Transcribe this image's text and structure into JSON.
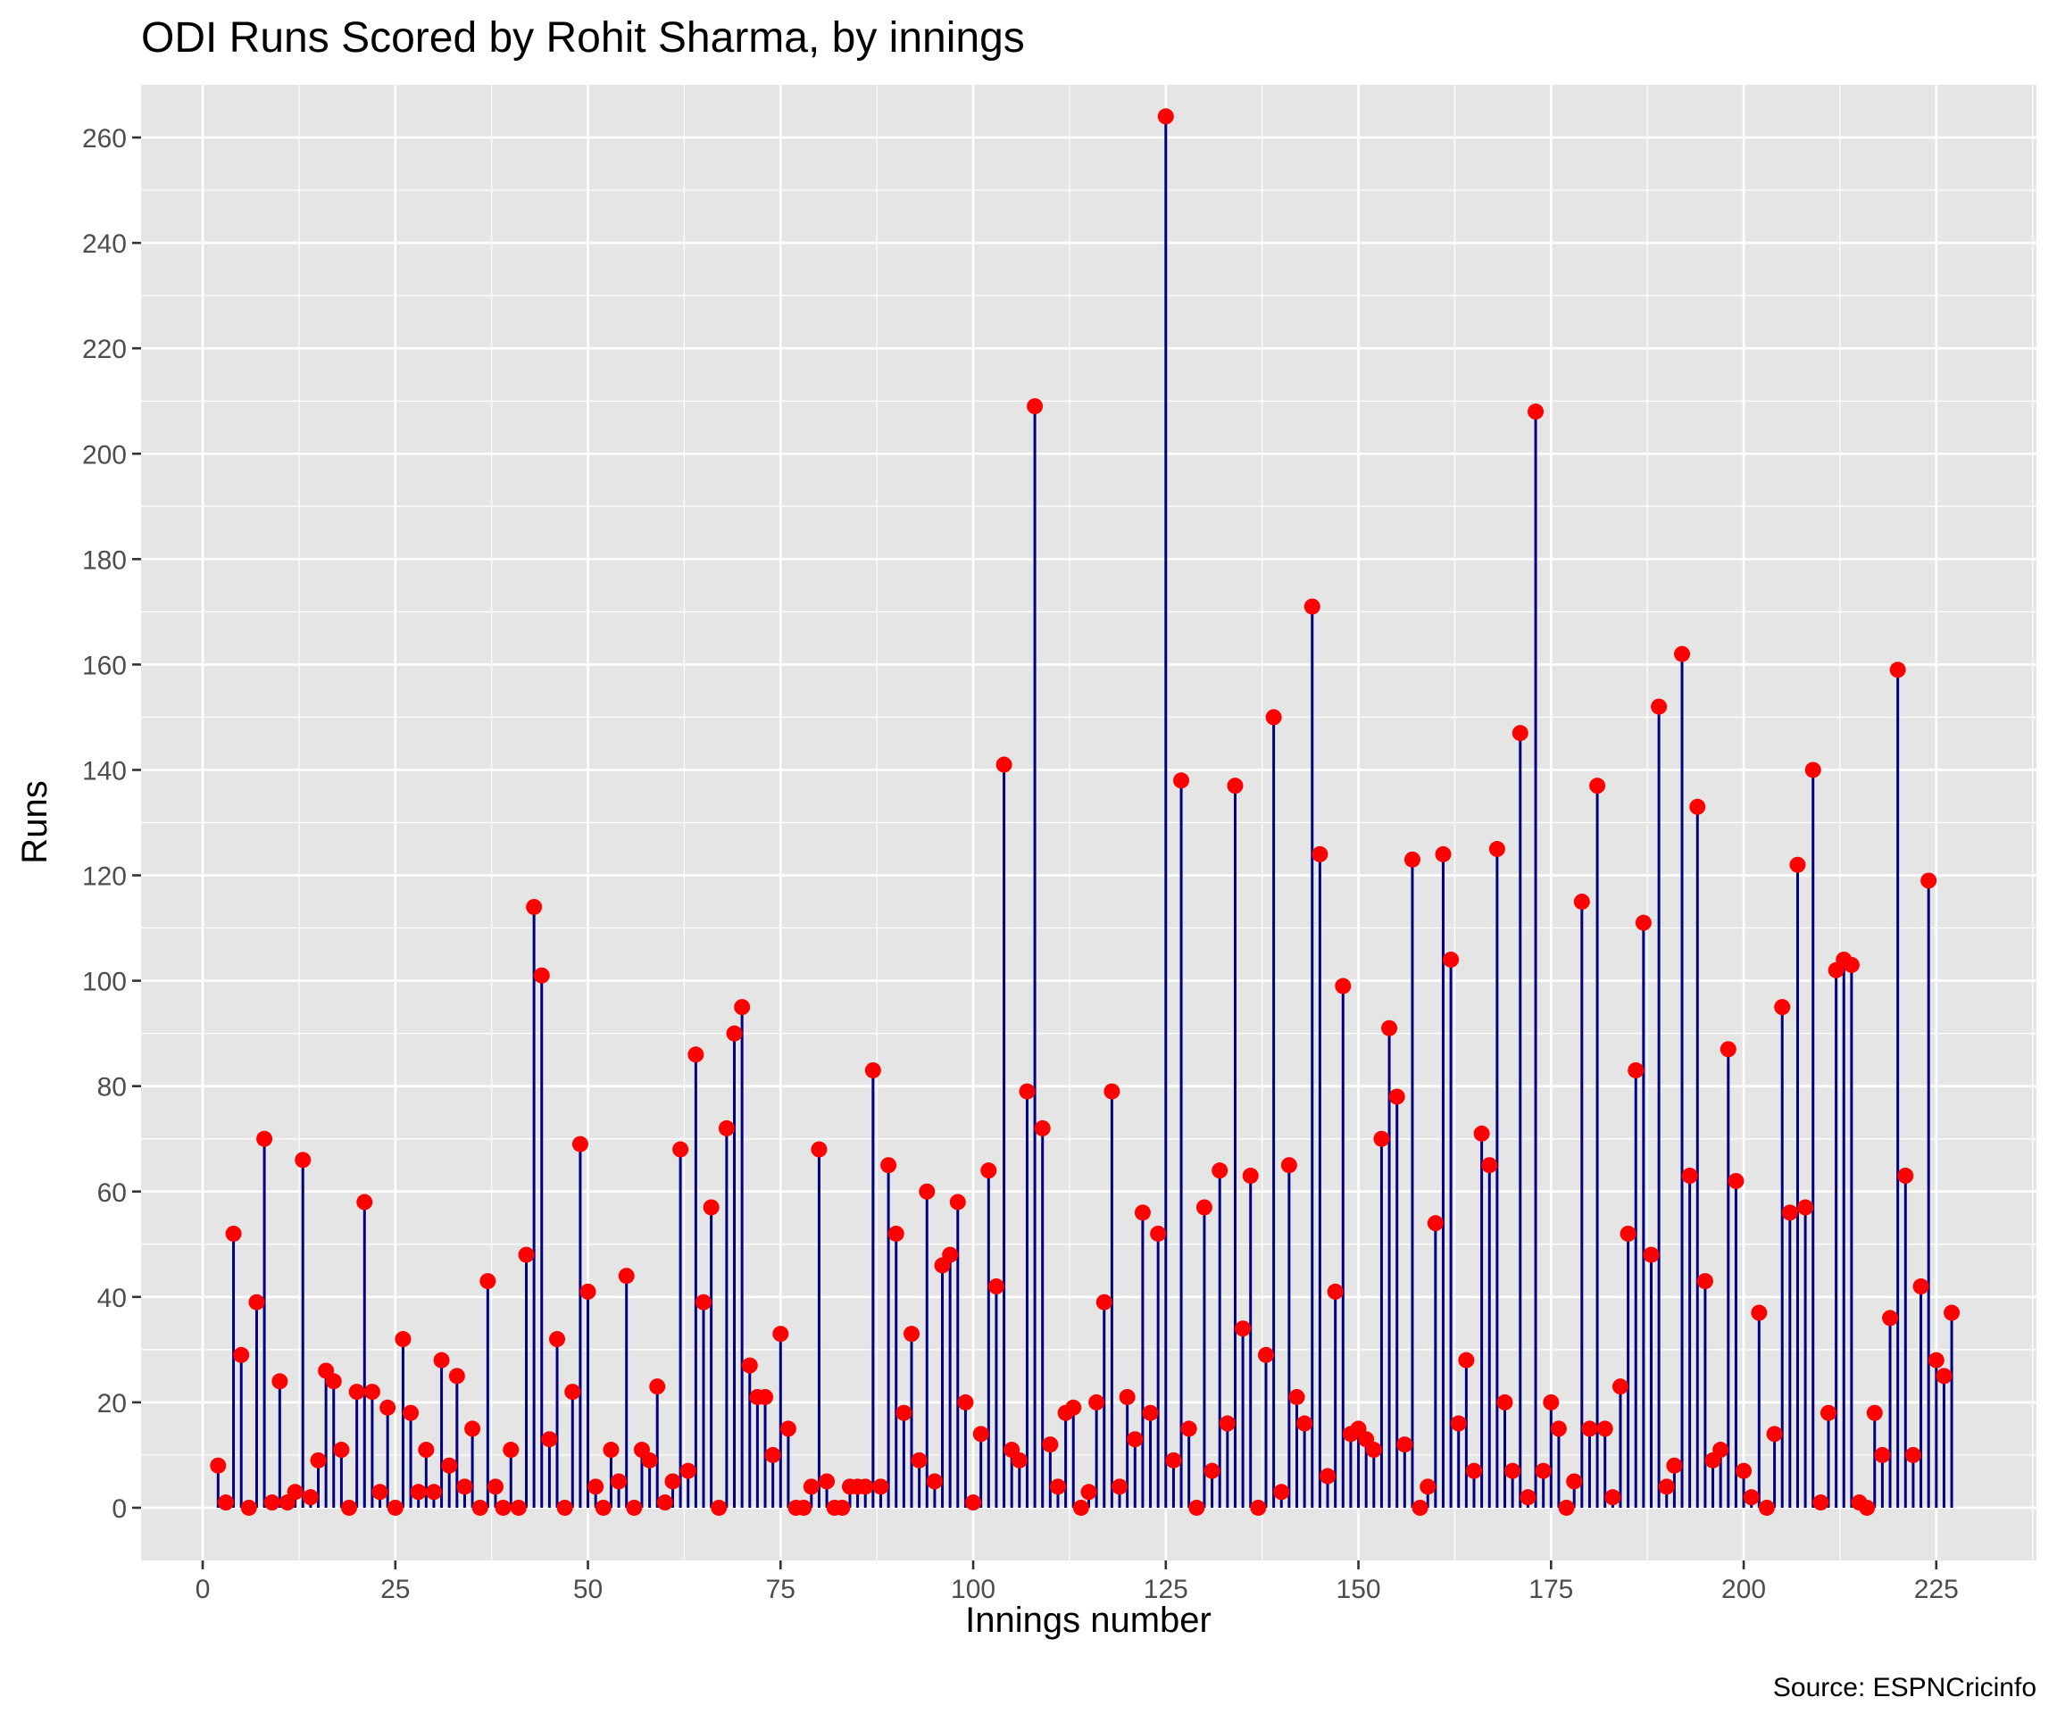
{
  "chart_data": {
    "type": "lollipop",
    "title": "ODI Runs Scored by Rohit Sharma, by innings",
    "xlabel": "Innings number",
    "ylabel": "Runs",
    "caption": "Source: ESPNCricinfo",
    "xlim": [
      -8,
      238
    ],
    "ylim": [
      -10,
      270
    ],
    "xticks": [
      0,
      25,
      50,
      75,
      100,
      125,
      150,
      175,
      200,
      225
    ],
    "yticks": [
      0,
      20,
      40,
      60,
      80,
      100,
      120,
      140,
      160,
      180,
      200,
      220,
      240,
      260
    ],
    "grid": true,
    "colors": {
      "panel": "#e5e5e5",
      "grid": "#ffffff",
      "stem": "#000080",
      "point": "#ff0000"
    },
    "x_start": 2,
    "values": [
      8,
      1,
      52,
      29,
      0,
      39,
      70,
      1,
      24,
      1,
      3,
      66,
      2,
      9,
      26,
      24,
      11,
      0,
      22,
      58,
      22,
      3,
      19,
      0,
      32,
      18,
      3,
      11,
      3,
      28,
      8,
      25,
      4,
      15,
      0,
      43,
      4,
      0,
      11,
      0,
      48,
      114,
      101,
      13,
      32,
      0,
      22,
      69,
      41,
      4,
      0,
      11,
      5,
      44,
      0,
      11,
      9,
      23,
      1,
      5,
      68,
      7,
      86,
      39,
      57,
      0,
      72,
      90,
      95,
      27,
      21,
      21,
      10,
      33,
      15,
      0,
      0,
      4,
      68,
      5,
      0,
      0,
      4,
      4,
      4,
      83,
      4,
      65,
      52,
      18,
      33,
      9,
      60,
      5,
      46,
      48,
      58,
      20,
      1,
      14,
      64,
      42,
      141,
      11,
      9,
      79,
      209,
      72,
      12,
      4,
      18,
      19,
      0,
      3,
      20,
      39,
      79,
      4,
      21,
      13,
      56,
      18,
      52,
      264,
      9,
      138,
      15,
      0,
      57,
      7,
      64,
      16,
      137,
      34,
      63,
      0,
      29,
      150,
      3,
      65,
      21,
      16,
      171,
      124,
      6,
      41,
      99,
      14,
      15,
      13,
      11,
      70,
      91,
      78,
      12,
      123,
      0,
      4,
      54,
      124,
      104,
      16,
      28,
      7,
      71,
      65,
      125,
      20,
      7,
      147,
      2,
      208,
      7,
      20,
      15,
      0,
      5,
      115,
      15,
      137,
      15,
      2,
      23,
      52,
      83,
      111,
      48,
      152,
      4,
      8,
      162,
      63,
      133,
      43,
      9,
      11,
      87,
      62,
      7,
      2,
      37,
      0,
      14,
      95,
      56,
      122,
      57,
      140,
      1,
      18,
      102,
      104,
      103,
      1,
      0,
      18,
      10,
      36,
      159,
      63,
      10,
      42,
      119,
      28,
      25,
      37
    ]
  }
}
